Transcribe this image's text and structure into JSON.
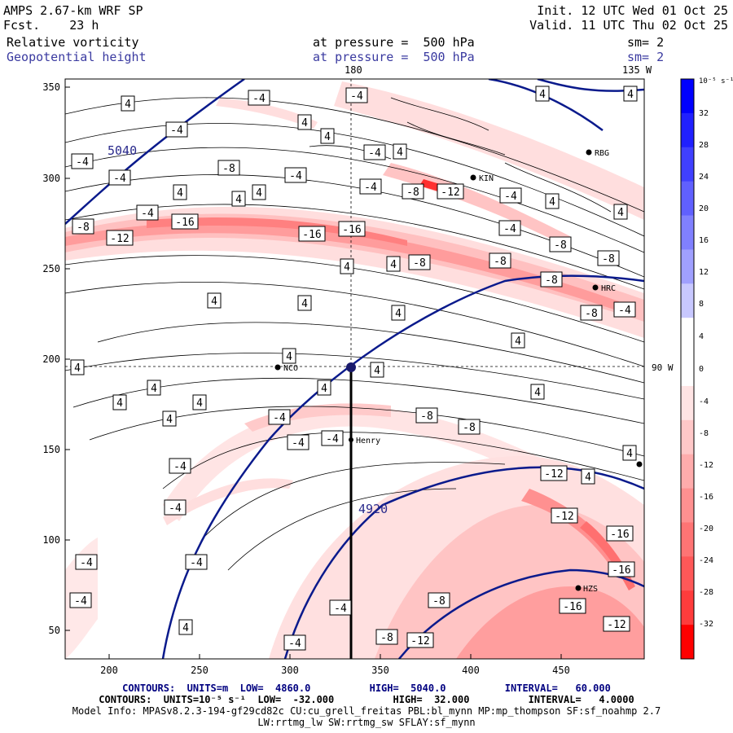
{
  "header": {
    "title": "AMPS 2.67-km WRF SP",
    "fcst_label": "Fcst.",
    "fcst_value": "23 h",
    "init": "Init. 12 UTC Wed 01 Oct 25",
    "valid": "Valid. 11 UTC Thu 02 Oct 25",
    "field1_name": "Relative vorticity",
    "field1_level": "at pressure =  500 hPa",
    "field1_sm": "sm= 2",
    "field2_name": "Geopotential height",
    "field2_level": "at pressure =  500 hPa",
    "field2_sm": "sm= 2"
  },
  "map": {
    "top_labels": [
      "180",
      "135 W"
    ],
    "right_label": "90 W",
    "x_ticks": [
      "200",
      "250",
      "300",
      "350",
      "400",
      "450"
    ],
    "y_ticks": [
      "350",
      "300",
      "250",
      "200",
      "150",
      "100",
      "50"
    ],
    "stations": [
      {
        "name": "RBG"
      },
      {
        "name": "KIN"
      },
      {
        "name": "HRC"
      },
      {
        "name": "NCO"
      },
      {
        "name": "Henry"
      },
      {
        "name": "HZS"
      }
    ],
    "height_labels": [
      "5040",
      "4920"
    ],
    "contour_labels": {
      "positive": "4",
      "negative": [
        "-4",
        "-8",
        "-12",
        "-16"
      ]
    }
  },
  "colorbar": {
    "unit": "10⁻⁵ s⁻¹",
    "ticks": [
      "32",
      "28",
      "24",
      "20",
      "16",
      "12",
      "8",
      "4",
      "0",
      "-4",
      "-8",
      "-12",
      "-16",
      "-20",
      "-24",
      "-28",
      "-32"
    ],
    "colors": [
      "#0000ff",
      "#2020ff",
      "#4040ff",
      "#6060ff",
      "#8080ff",
      "#a0a0ff",
      "#c8c8ff",
      "#ffffff",
      "#ffffff",
      "#ffe4e4",
      "#ffc8c8",
      "#ffacac",
      "#ff9090",
      "#ff7474",
      "#ff5858",
      "#ff3c3c",
      "#ff0000"
    ]
  },
  "footer": {
    "line1": "CONTOURS:  UNITS=m  LOW=  4860.0          HIGH=  5040.0          INTERVAL=   60.000",
    "line2": "CONTOURS:  UNITS=10⁻⁵ s⁻¹  LOW=  -32.000          HIGH=  32.000          INTERVAL=   4.0000",
    "line3": "Model Info: MPASv8.2.3-194-gf29cd82c CU:cu_grell_freitas PBL:bl_mynn MP:mp_thompson SF:sf_noahmp 2.7",
    "line4": "LW:rrtmg_lw SW:rrtmg_sw SFLAY:sf_mynn"
  }
}
